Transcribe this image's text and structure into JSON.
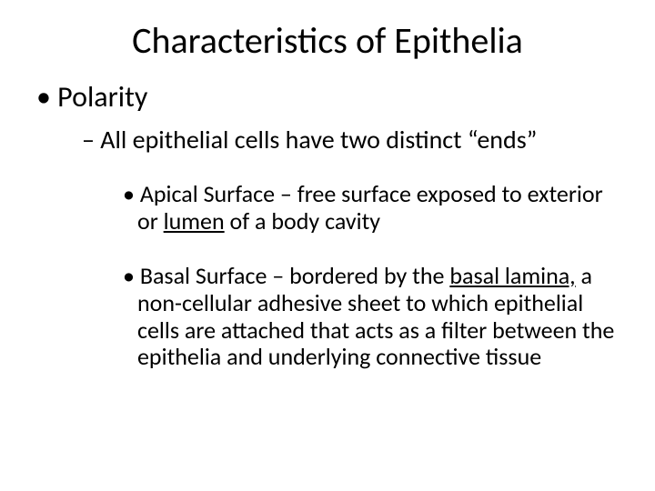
{
  "slide": {
    "title": "Characteristics of Epithelia",
    "level1": "Polarity",
    "level2": "All epithelial cells have two distinct “ends”",
    "apical_prefix": "Apical Surface – free surface exposed to exterior or ",
    "apical_ul": "lumen",
    "apical_suffix": " of a body cavity",
    "basal_prefix": "Basal Surface – bordered by the ",
    "basal_ul": "basal lamina,",
    "basal_suffix": " a non-cellular adhesive sheet to which epithelial cells are attached that acts as a filter between the epithelia and underlying connective tissue"
  },
  "style": {
    "background_color": "#ffffff",
    "text_color": "#000000",
    "title_fontsize": 40,
    "l1_fontsize": 32,
    "l2_fontsize": 28,
    "l3_fontsize": 26,
    "font_family": "Calibri"
  }
}
